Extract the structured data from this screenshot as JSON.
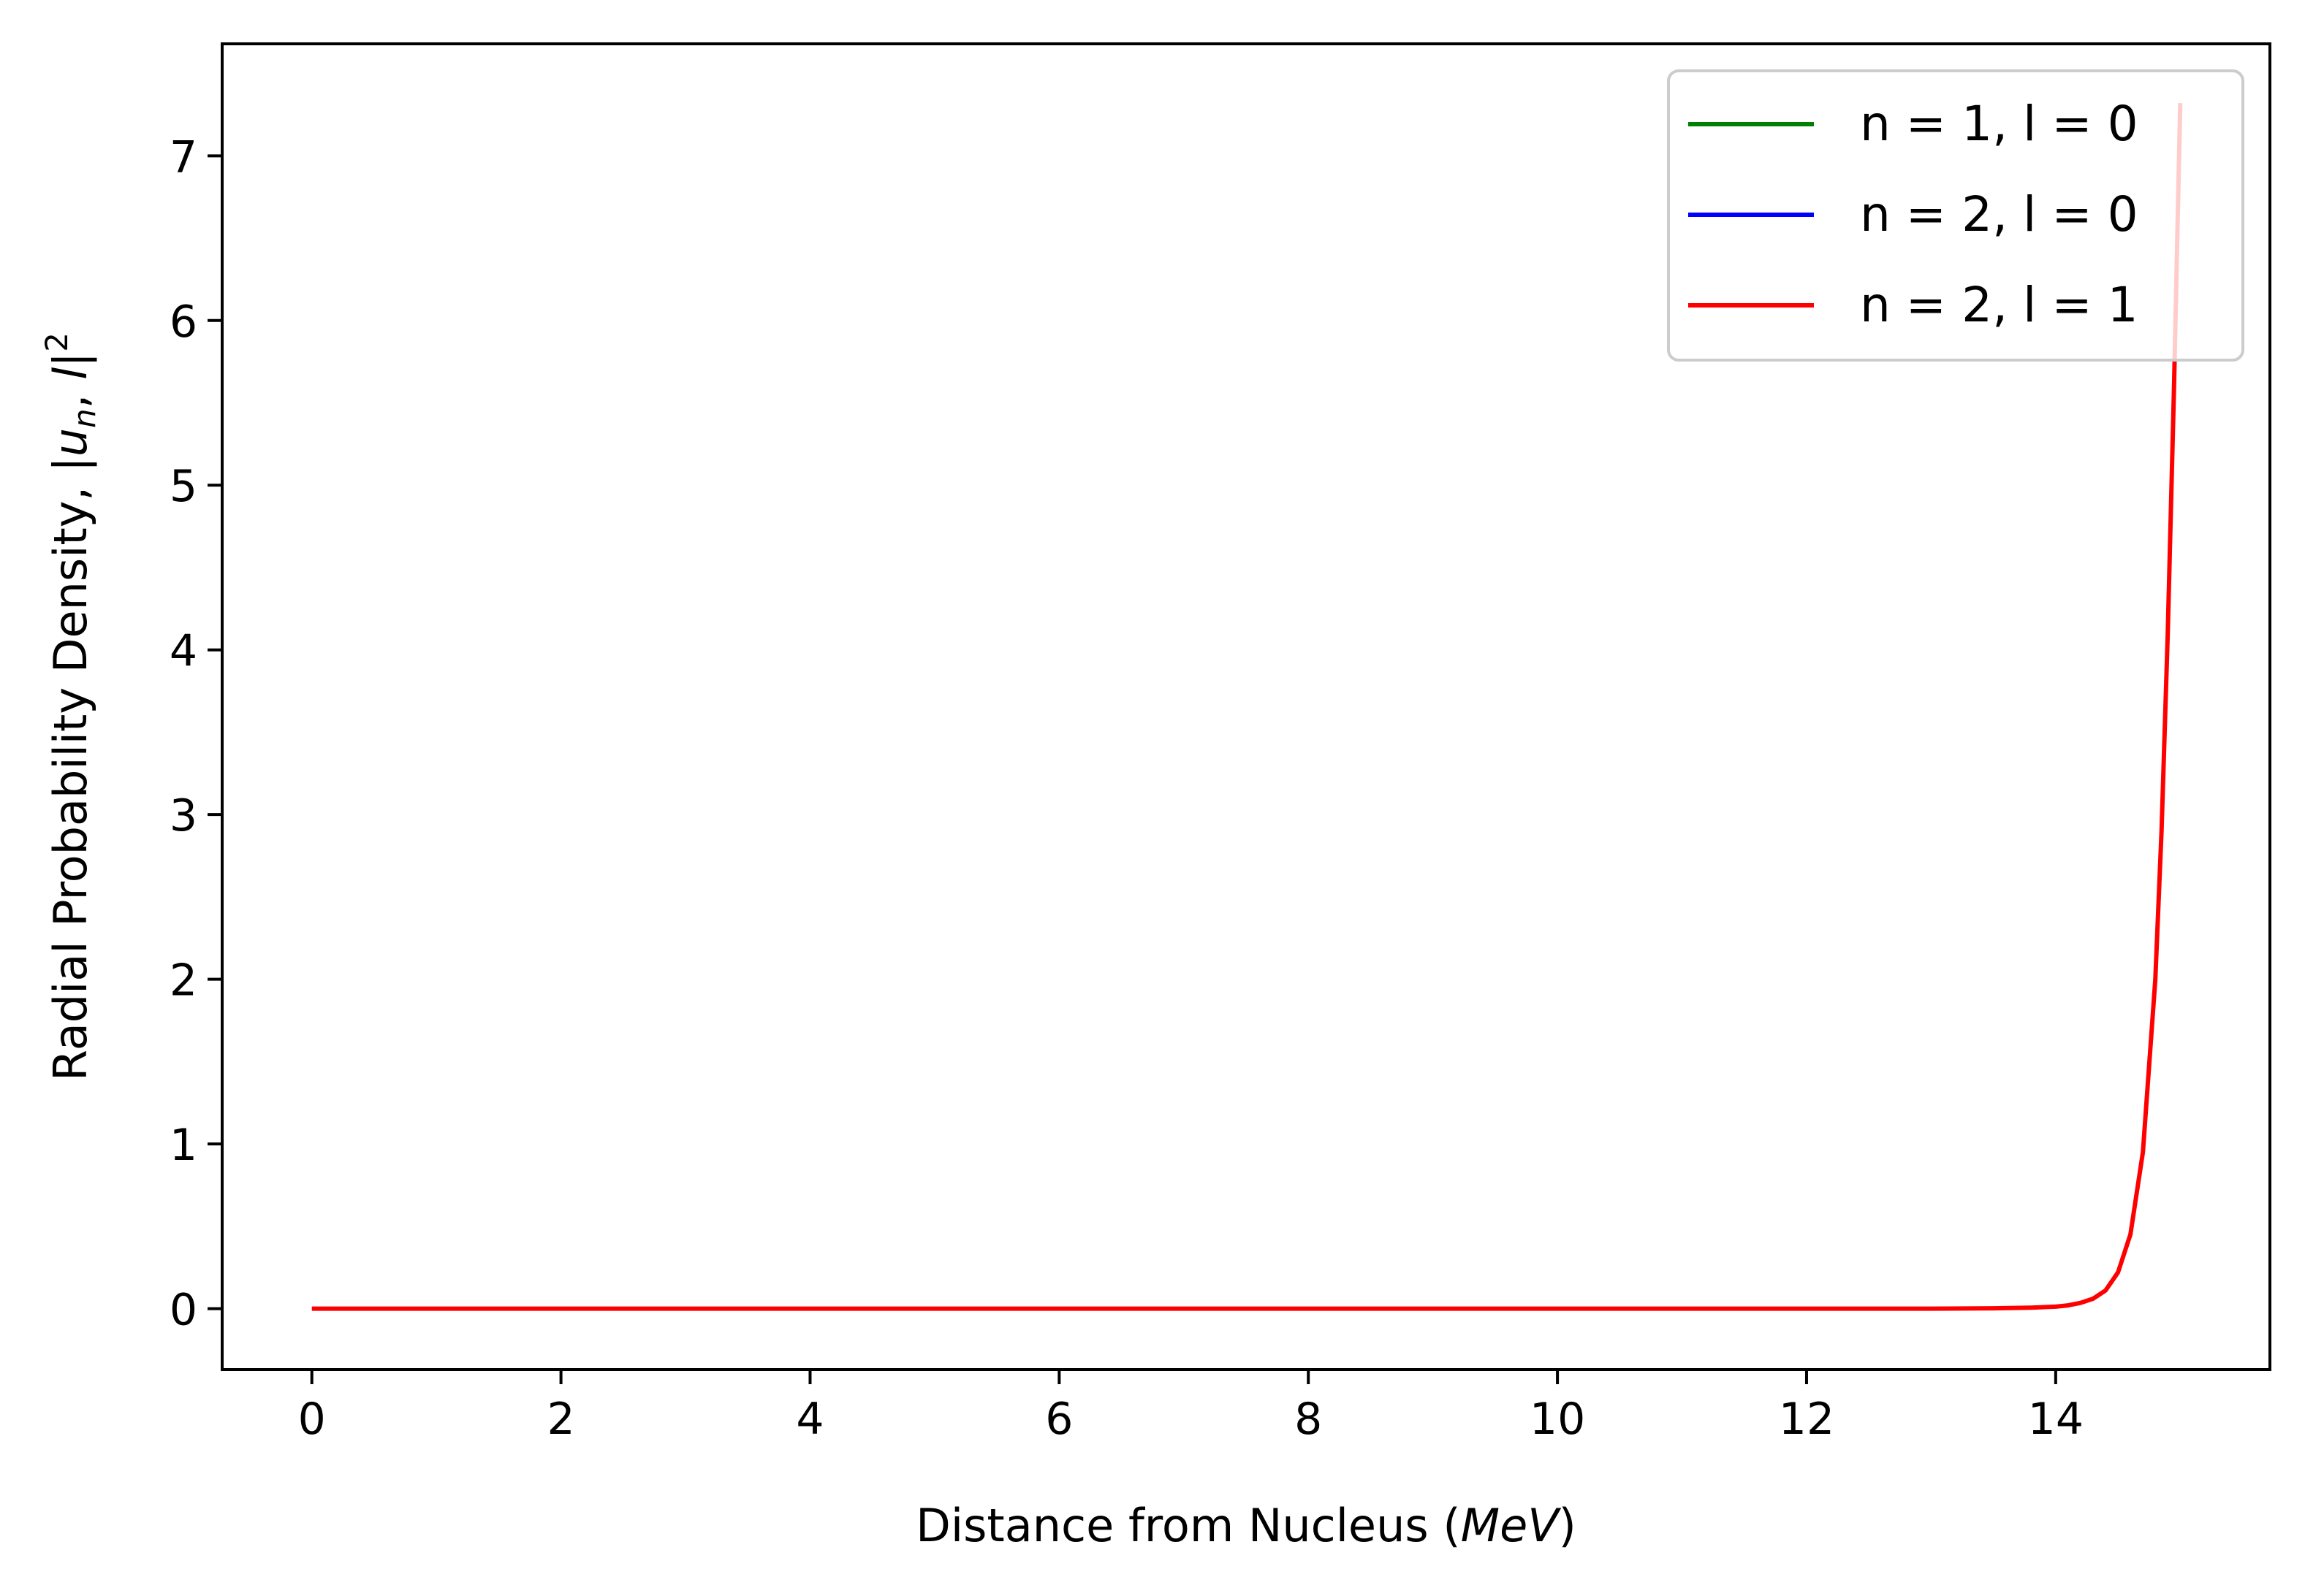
{
  "chart_data": {
    "type": "line",
    "title": "",
    "xlabel": {
      "prefix": "Distance from Nucleus (",
      "italic": "MeV",
      "suffix": ")"
    },
    "ylabel": {
      "prefix": "Radial Probability Density, |",
      "italic_u": "u",
      "sub_n": "n",
      "mid": ", ",
      "italic_l": "l",
      "suffix": "|",
      "sup": "2"
    },
    "xlim": [
      -0.72,
      15.72
    ],
    "ylim": [
      -0.37,
      7.68
    ],
    "xticks": [
      0,
      2,
      4,
      6,
      8,
      10,
      12,
      14
    ],
    "yticks": [
      0,
      1,
      2,
      3,
      4,
      5,
      6,
      7
    ],
    "grid": false,
    "legend_position": "top-right",
    "series": [
      {
        "name": "n = 1, l = 0",
        "color": "#008000",
        "x": [],
        "y": []
      },
      {
        "name": "n = 2, l = 0",
        "color": "#0000ff",
        "x": [],
        "y": []
      },
      {
        "name": "n = 2, l = 1",
        "color": "#ff0000",
        "x": [
          0,
          2,
          4,
          6,
          8,
          10,
          12,
          13,
          13.5,
          13.8,
          14.0,
          14.1,
          14.2,
          14.3,
          14.4,
          14.5,
          14.6,
          14.7,
          14.8,
          14.85,
          14.9,
          14.95,
          15.0
        ],
        "y": [
          0,
          0,
          0,
          0,
          0,
          0,
          0,
          0,
          0.002,
          0.006,
          0.012,
          0.02,
          0.035,
          0.06,
          0.11,
          0.22,
          0.45,
          0.95,
          2.0,
          2.9,
          4.1,
          5.6,
          7.32
        ]
      }
    ]
  }
}
